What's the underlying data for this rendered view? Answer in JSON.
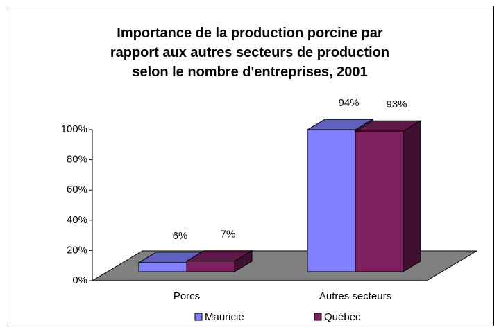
{
  "chart_data": {
    "type": "bar3d",
    "title": "Importance de la production porcine par rapport aux autres secteurs de production selon le nombre d'entreprises, 2001",
    "categories": [
      "Porcs",
      "Autres secteurs"
    ],
    "series": [
      {
        "name": "Mauricie",
        "color": "#8080ff",
        "values": [
          6,
          94
        ],
        "value_labels": [
          "6%",
          "94%"
        ]
      },
      {
        "name": "Québec",
        "color": "#802060",
        "values": [
          7,
          93
        ],
        "value_labels": [
          "7%",
          "93%"
        ]
      }
    ],
    "ylim": [
      0,
      100
    ],
    "yticks": [
      {
        "value": 0,
        "label": "0%"
      },
      {
        "value": 20,
        "label": "20%"
      },
      {
        "value": 40,
        "label": "40%"
      },
      {
        "value": 60,
        "label": "60%"
      },
      {
        "value": 80,
        "label": "80%"
      },
      {
        "value": 100,
        "label": "100%"
      }
    ],
    "grid": false
  }
}
